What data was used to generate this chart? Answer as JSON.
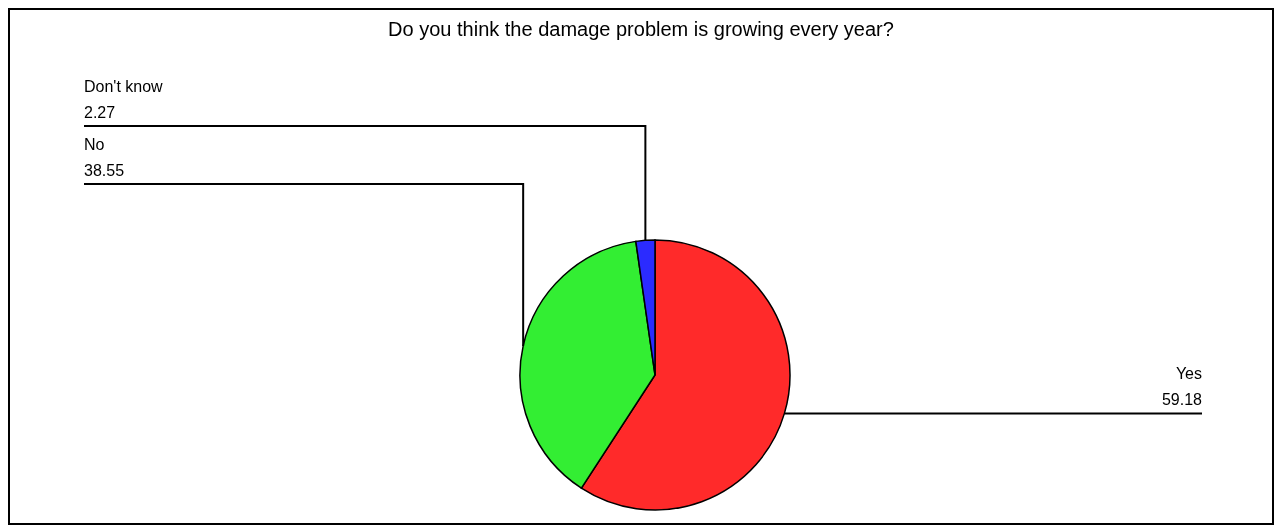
{
  "chart_data": {
    "type": "pie",
    "title": "Do you think the damage problem is growing every year?",
    "categories": [
      "Yes",
      "No",
      "Don't know"
    ],
    "values": [
      59.18,
      38.55,
      2.27
    ],
    "colors": [
      "#ff2a2a",
      "#33ee33",
      "#2b2bff"
    ],
    "data_labels": true
  }
}
